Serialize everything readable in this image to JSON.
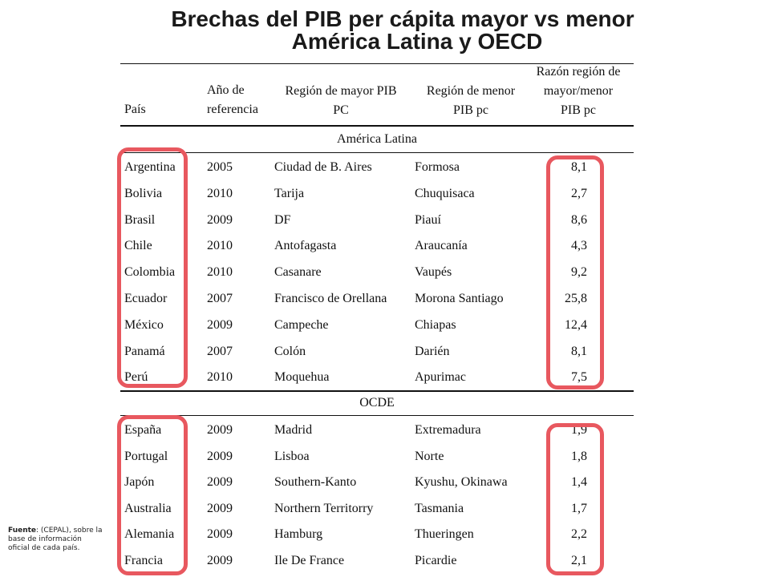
{
  "title": {
    "line1": "Brechas del PIB per cápita mayor vs menor",
    "line2": "América Latina y OECD"
  },
  "headers": {
    "pais": "País",
    "anio_l1": "Año de",
    "anio_l2": "referencia",
    "mayor_l1": "Región de mayor PIB",
    "mayor_l2": "PC",
    "menor_l1": "Región de menor",
    "menor_l2": "PIB pc",
    "razon_l1": "Razón región de",
    "razon_l2": "mayor/menor",
    "razon_l3": "PIB pc"
  },
  "sections": {
    "latam": "América Latina",
    "ocde": "OCDE"
  },
  "latam_rows": [
    {
      "pais": "Argentina",
      "anio": "2005",
      "mayor": "Ciudad de B. Aires",
      "menor": "Formosa",
      "razon": "8,1"
    },
    {
      "pais": "Bolivia",
      "anio": "2010",
      "mayor": "Tarija",
      "menor": "Chuquisaca",
      "razon": "2,7"
    },
    {
      "pais": "Brasil",
      "anio": "2009",
      "mayor": "DF",
      "menor": "Piauí",
      "razon": "8,6"
    },
    {
      "pais": "Chile",
      "anio": "2010",
      "mayor": "Antofagasta",
      "menor": "Araucanía",
      "razon": "4,3"
    },
    {
      "pais": "Colombia",
      "anio": "2010",
      "mayor": "Casanare",
      "menor": "Vaupés",
      "razon": "9,2"
    },
    {
      "pais": "Ecuador",
      "anio": "2007",
      "mayor": "Francisco de Orellana",
      "menor": "Morona Santiago",
      "razon": "25,8"
    },
    {
      "pais": "México",
      "anio": "2009",
      "mayor": "Campeche",
      "menor": "Chiapas",
      "razon": "12,4"
    },
    {
      "pais": "Panamá",
      "anio": "2007",
      "mayor": "Colón",
      "menor": "Darién",
      "razon": "8,1"
    },
    {
      "pais": "Perú",
      "anio": "2010",
      "mayor": "Moquehua",
      "menor": "Apurimac",
      "razon": "7,5"
    }
  ],
  "ocde_rows": [
    {
      "pais": "España",
      "anio": "2009",
      "mayor": "Madrid",
      "menor": "Extremadura",
      "razon": "1,9"
    },
    {
      "pais": "Portugal",
      "anio": "2009",
      "mayor": "Lisboa",
      "menor": "Norte",
      "razon": "1,8"
    },
    {
      "pais": "Japón",
      "anio": "2009",
      "mayor": "Southern-Kanto",
      "menor": "Kyushu, Okinawa",
      "razon": "1,4"
    },
    {
      "pais": "Australia",
      "anio": "2009",
      "mayor": "Northern Territorry",
      "menor": "Tasmania",
      "razon": "1,7"
    },
    {
      "pais": "Alemania",
      "anio": "2009",
      "mayor": "Hamburg",
      "menor": "Thueringen",
      "razon": "2,2"
    },
    {
      "pais": "Francia",
      "anio": "2009",
      "mayor": "Ile De France",
      "menor": "Picardie",
      "razon": "2,1"
    }
  ],
  "source": {
    "label": "Fuente",
    "text": ": (CEPAL), sobre la base de información oficial de cada país."
  },
  "colors": {
    "highlight": "#e8585f"
  }
}
